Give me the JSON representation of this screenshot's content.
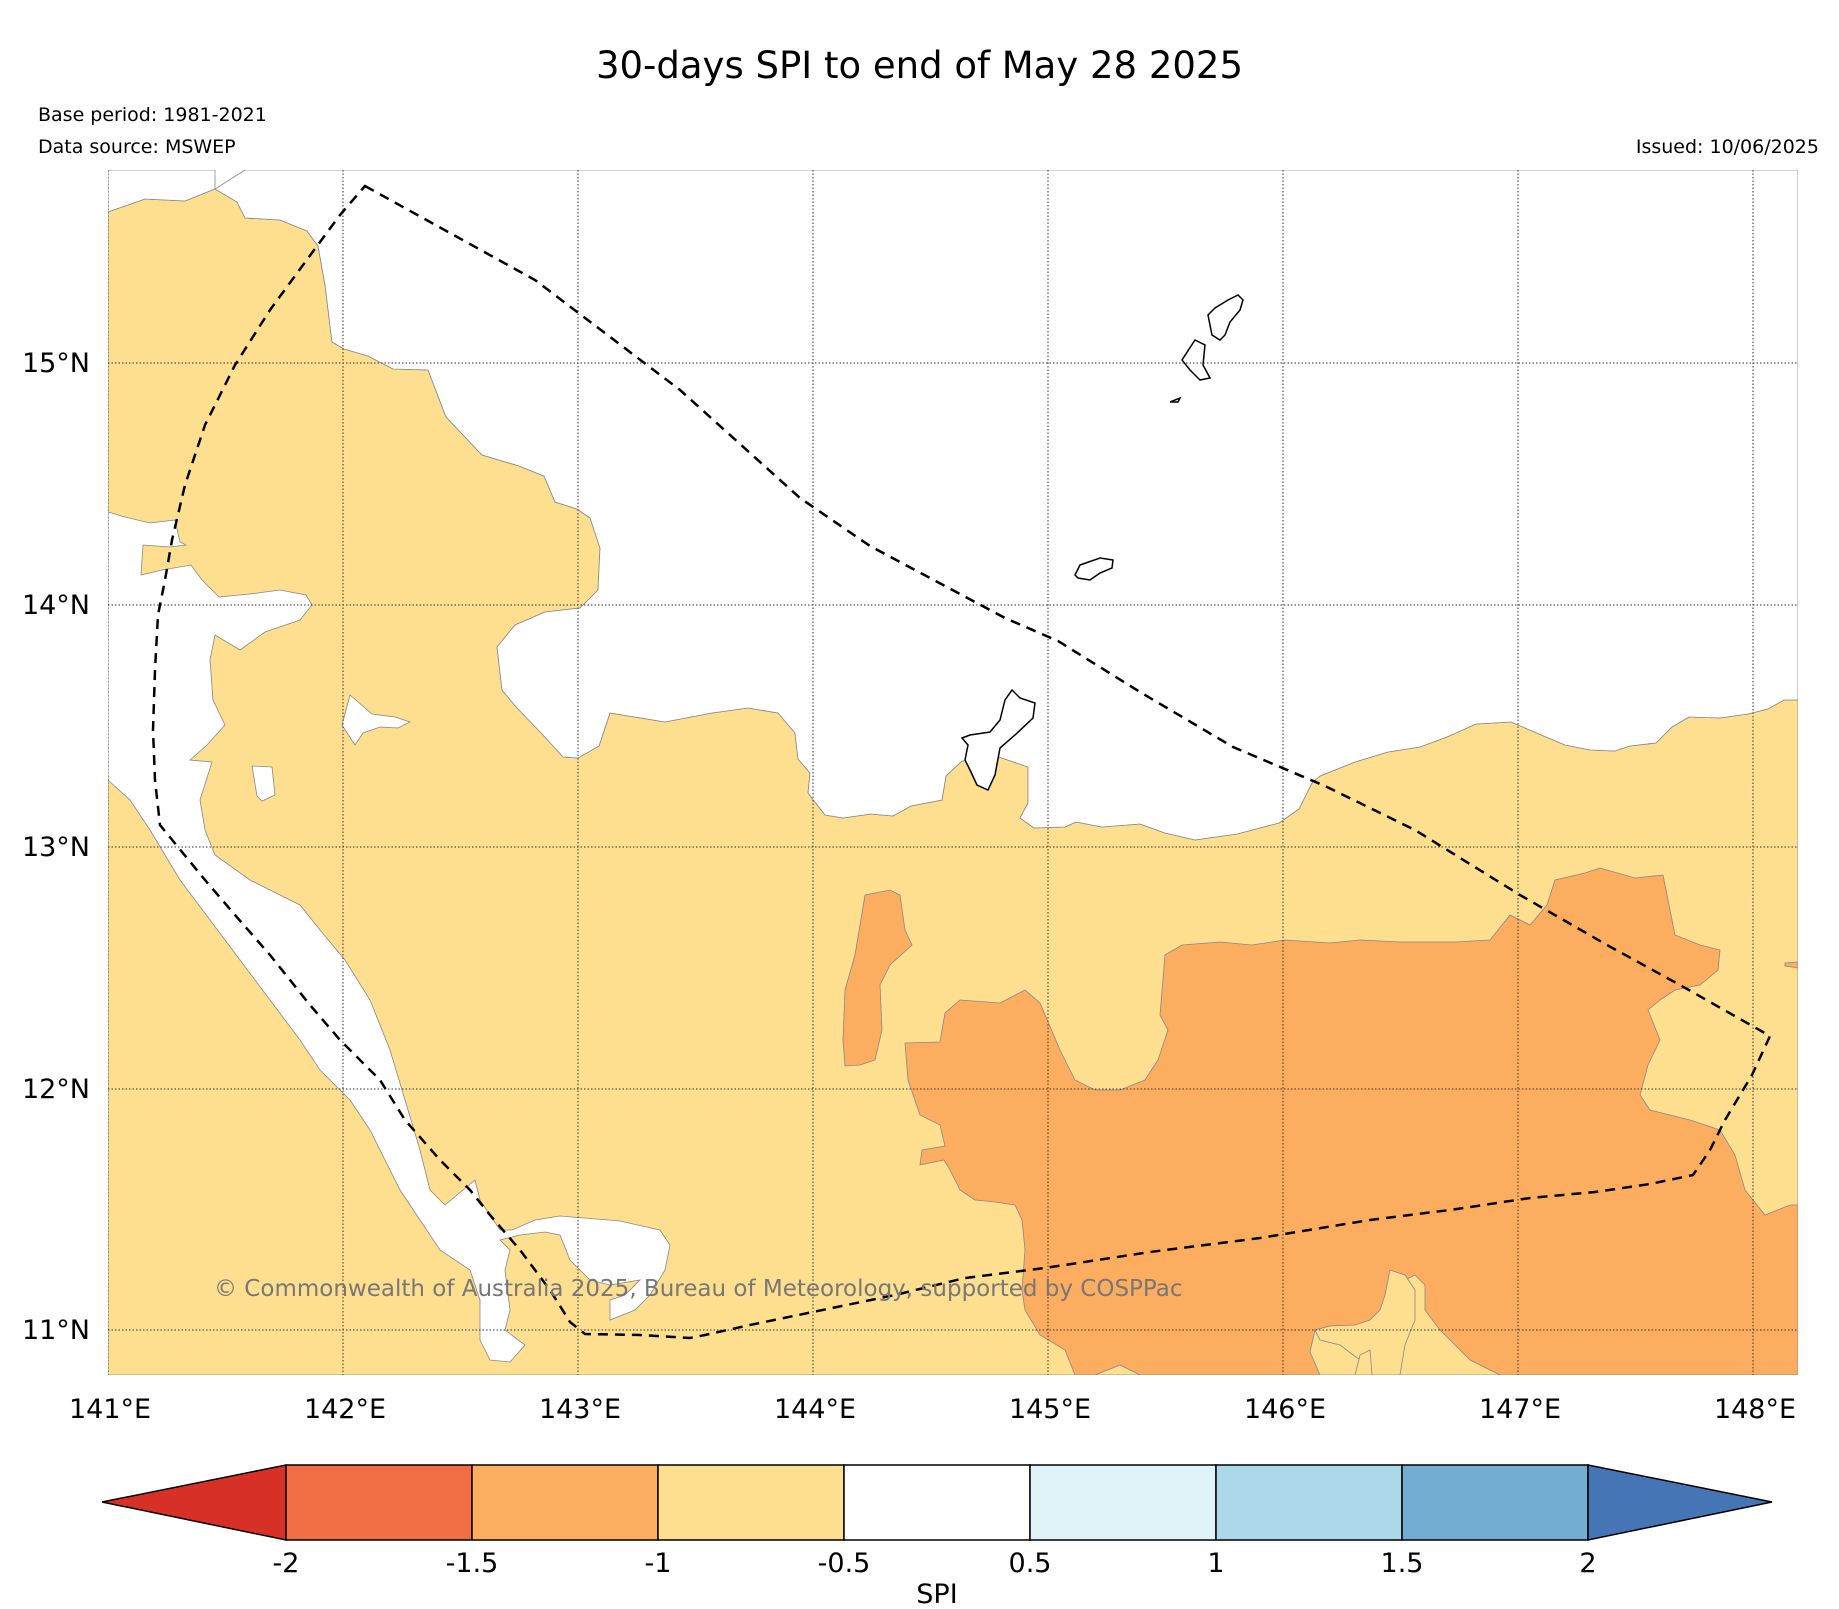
{
  "title": "30-days SPI to end of May 28 2025",
  "base_period": "Base period: 1981-2021",
  "data_source": "Data source: MSWEP",
  "issued": "Issued: 10/06/2025",
  "copyright": "© Commonwealth of Australia 2025, Bureau of Meteorology, supported by COSPPac",
  "longitude_labels": [
    "141°E",
    "142°E",
    "143°E",
    "144°E",
    "145°E",
    "146°E",
    "147°E",
    "148°E"
  ],
  "latitude_labels": [
    "15°N",
    "14°N",
    "13°N",
    "12°N",
    "11°N"
  ],
  "colorbar": {
    "label": "SPI",
    "ticks": [
      "-2",
      "-1.5",
      "-1",
      "-0.5",
      "0.5",
      "1",
      "1.5",
      "2"
    ],
    "colors": [
      "#d73027",
      "#f16d43",
      "#fcad60",
      "#fedf90",
      "#ffffff",
      "#e0f3f8",
      "#abd9e9",
      "#74add1",
      "#4575b4"
    ]
  }
}
